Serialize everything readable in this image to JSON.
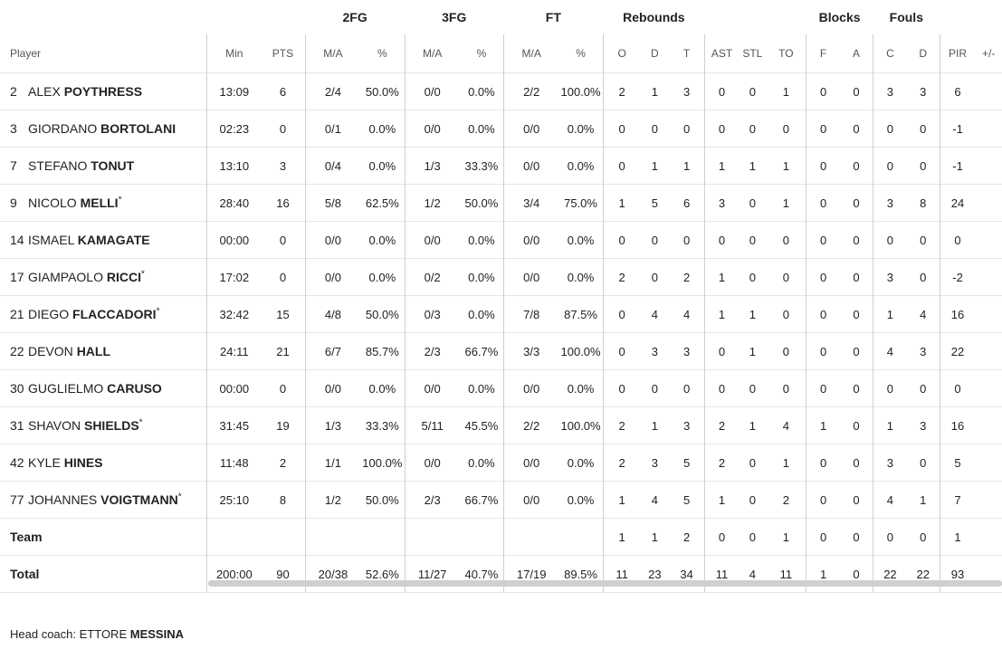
{
  "groups": {
    "fg2": "2FG",
    "fg3": "3FG",
    "ft": "FT",
    "rebounds": "Rebounds",
    "blocks": "Blocks",
    "fouls": "Fouls"
  },
  "columns": {
    "player": "Player",
    "min": "Min",
    "pts": "PTS",
    "fg2_ma": "M/A",
    "fg2_pct": "%",
    "fg3_ma": "M/A",
    "fg3_pct": "%",
    "ft_ma": "M/A",
    "ft_pct": "%",
    "reb_o": "O",
    "reb_d": "D",
    "reb_t": "T",
    "ast": "AST",
    "stl": "STL",
    "to": "TO",
    "blk_f": "F",
    "blk_a": "A",
    "foul_c": "C",
    "foul_d": "D",
    "pir": "PIR",
    "plusminus": "+/-"
  },
  "rows": [
    {
      "num": "2",
      "first": "ALEX",
      "last": "POYTHRESS",
      "star": "",
      "min": "13:09",
      "pts": "6",
      "fg2_ma": "2/4",
      "fg2_pct": "50.0%",
      "fg3_ma": "0/0",
      "fg3_pct": "0.0%",
      "ft_ma": "2/2",
      "ft_pct": "100.0%",
      "reb_o": "2",
      "reb_d": "1",
      "reb_t": "3",
      "ast": "0",
      "stl": "0",
      "to": "1",
      "blk_f": "0",
      "blk_a": "0",
      "foul_c": "3",
      "foul_d": "3",
      "pir": "6",
      "pm": ""
    },
    {
      "num": "3",
      "first": "GIORDANO",
      "last": "BORTOLANI",
      "star": "",
      "min": "02:23",
      "pts": "0",
      "fg2_ma": "0/1",
      "fg2_pct": "0.0%",
      "fg3_ma": "0/0",
      "fg3_pct": "0.0%",
      "ft_ma": "0/0",
      "ft_pct": "0.0%",
      "reb_o": "0",
      "reb_d": "0",
      "reb_t": "0",
      "ast": "0",
      "stl": "0",
      "to": "0",
      "blk_f": "0",
      "blk_a": "0",
      "foul_c": "0",
      "foul_d": "0",
      "pir": "-1",
      "pm": ""
    },
    {
      "num": "7",
      "first": "STEFANO",
      "last": "TONUT",
      "star": "",
      "min": "13:10",
      "pts": "3",
      "fg2_ma": "0/4",
      "fg2_pct": "0.0%",
      "fg3_ma": "1/3",
      "fg3_pct": "33.3%",
      "ft_ma": "0/0",
      "ft_pct": "0.0%",
      "reb_o": "0",
      "reb_d": "1",
      "reb_t": "1",
      "ast": "1",
      "stl": "1",
      "to": "1",
      "blk_f": "0",
      "blk_a": "0",
      "foul_c": "0",
      "foul_d": "0",
      "pir": "-1",
      "pm": ""
    },
    {
      "num": "9",
      "first": "NICOLO",
      "last": "MELLI",
      "star": "*",
      "min": "28:40",
      "pts": "16",
      "fg2_ma": "5/8",
      "fg2_pct": "62.5%",
      "fg3_ma": "1/2",
      "fg3_pct": "50.0%",
      "ft_ma": "3/4",
      "ft_pct": "75.0%",
      "reb_o": "1",
      "reb_d": "5",
      "reb_t": "6",
      "ast": "3",
      "stl": "0",
      "to": "1",
      "blk_f": "0",
      "blk_a": "0",
      "foul_c": "3",
      "foul_d": "8",
      "pir": "24",
      "pm": ""
    },
    {
      "num": "14",
      "first": "ISMAEL",
      "last": "KAMAGATE",
      "star": "",
      "min": "00:00",
      "pts": "0",
      "fg2_ma": "0/0",
      "fg2_pct": "0.0%",
      "fg3_ma": "0/0",
      "fg3_pct": "0.0%",
      "ft_ma": "0/0",
      "ft_pct": "0.0%",
      "reb_o": "0",
      "reb_d": "0",
      "reb_t": "0",
      "ast": "0",
      "stl": "0",
      "to": "0",
      "blk_f": "0",
      "blk_a": "0",
      "foul_c": "0",
      "foul_d": "0",
      "pir": "0",
      "pm": ""
    },
    {
      "num": "17",
      "first": "GIAMPAOLO",
      "last": "RICCI",
      "star": "*",
      "min": "17:02",
      "pts": "0",
      "fg2_ma": "0/0",
      "fg2_pct": "0.0%",
      "fg3_ma": "0/2",
      "fg3_pct": "0.0%",
      "ft_ma": "0/0",
      "ft_pct": "0.0%",
      "reb_o": "2",
      "reb_d": "0",
      "reb_t": "2",
      "ast": "1",
      "stl": "0",
      "to": "0",
      "blk_f": "0",
      "blk_a": "0",
      "foul_c": "3",
      "foul_d": "0",
      "pir": "-2",
      "pm": ""
    },
    {
      "num": "21",
      "first": "DIEGO",
      "last": "FLACCADORI",
      "star": "*",
      "min": "32:42",
      "pts": "15",
      "fg2_ma": "4/8",
      "fg2_pct": "50.0%",
      "fg3_ma": "0/3",
      "fg3_pct": "0.0%",
      "ft_ma": "7/8",
      "ft_pct": "87.5%",
      "reb_o": "0",
      "reb_d": "4",
      "reb_t": "4",
      "ast": "1",
      "stl": "1",
      "to": "0",
      "blk_f": "0",
      "blk_a": "0",
      "foul_c": "1",
      "foul_d": "4",
      "pir": "16",
      "pm": ""
    },
    {
      "num": "22",
      "first": "DEVON",
      "last": "HALL",
      "star": "",
      "min": "24:11",
      "pts": "21",
      "fg2_ma": "6/7",
      "fg2_pct": "85.7%",
      "fg3_ma": "2/3",
      "fg3_pct": "66.7%",
      "ft_ma": "3/3",
      "ft_pct": "100.0%",
      "reb_o": "0",
      "reb_d": "3",
      "reb_t": "3",
      "ast": "0",
      "stl": "1",
      "to": "0",
      "blk_f": "0",
      "blk_a": "0",
      "foul_c": "4",
      "foul_d": "3",
      "pir": "22",
      "pm": ""
    },
    {
      "num": "30",
      "first": "GUGLIELMO",
      "last": "CARUSO",
      "star": "",
      "min": "00:00",
      "pts": "0",
      "fg2_ma": "0/0",
      "fg2_pct": "0.0%",
      "fg3_ma": "0/0",
      "fg3_pct": "0.0%",
      "ft_ma": "0/0",
      "ft_pct": "0.0%",
      "reb_o": "0",
      "reb_d": "0",
      "reb_t": "0",
      "ast": "0",
      "stl": "0",
      "to": "0",
      "blk_f": "0",
      "blk_a": "0",
      "foul_c": "0",
      "foul_d": "0",
      "pir": "0",
      "pm": ""
    },
    {
      "num": "31",
      "first": "SHAVON",
      "last": "SHIELDS",
      "star": "*",
      "min": "31:45",
      "pts": "19",
      "fg2_ma": "1/3",
      "fg2_pct": "33.3%",
      "fg3_ma": "5/11",
      "fg3_pct": "45.5%",
      "ft_ma": "2/2",
      "ft_pct": "100.0%",
      "reb_o": "2",
      "reb_d": "1",
      "reb_t": "3",
      "ast": "2",
      "stl": "1",
      "to": "4",
      "blk_f": "1",
      "blk_a": "0",
      "foul_c": "1",
      "foul_d": "3",
      "pir": "16",
      "pm": ""
    },
    {
      "num": "42",
      "first": "KYLE",
      "last": "HINES",
      "star": "",
      "min": "11:48",
      "pts": "2",
      "fg2_ma": "1/1",
      "fg2_pct": "100.0%",
      "fg3_ma": "0/0",
      "fg3_pct": "0.0%",
      "ft_ma": "0/0",
      "ft_pct": "0.0%",
      "reb_o": "2",
      "reb_d": "3",
      "reb_t": "5",
      "ast": "2",
      "stl": "0",
      "to": "1",
      "blk_f": "0",
      "blk_a": "0",
      "foul_c": "3",
      "foul_d": "0",
      "pir": "5",
      "pm": ""
    },
    {
      "num": "77",
      "first": "JOHANNES",
      "last": "VOIGTMANN",
      "star": "*",
      "min": "25:10",
      "pts": "8",
      "fg2_ma": "1/2",
      "fg2_pct": "50.0%",
      "fg3_ma": "2/3",
      "fg3_pct": "66.7%",
      "ft_ma": "0/0",
      "ft_pct": "0.0%",
      "reb_o": "1",
      "reb_d": "4",
      "reb_t": "5",
      "ast": "1",
      "stl": "0",
      "to": "2",
      "blk_f": "0",
      "blk_a": "0",
      "foul_c": "4",
      "foul_d": "1",
      "pir": "7",
      "pm": ""
    }
  ],
  "team": {
    "label": "Team",
    "min": "",
    "pts": "",
    "fg2_ma": "",
    "fg2_pct": "",
    "fg3_ma": "",
    "fg3_pct": "",
    "ft_ma": "",
    "ft_pct": "",
    "reb_o": "1",
    "reb_d": "1",
    "reb_t": "2",
    "ast": "0",
    "stl": "0",
    "to": "1",
    "blk_f": "0",
    "blk_a": "0",
    "foul_c": "0",
    "foul_d": "0",
    "pir": "1",
    "pm": ""
  },
  "total": {
    "label": "Total",
    "min": "200:00",
    "pts": "90",
    "fg2_ma": "20/38",
    "fg2_pct": "52.6%",
    "fg3_ma": "11/27",
    "fg3_pct": "40.7%",
    "ft_ma": "17/19",
    "ft_pct": "89.5%",
    "reb_o": "11",
    "reb_d": "23",
    "reb_t": "34",
    "ast": "11",
    "stl": "4",
    "to": "11",
    "blk_f": "1",
    "blk_a": "0",
    "foul_c": "22",
    "foul_d": "22",
    "pir": "93",
    "pm": ""
  },
  "coach": {
    "label": "Head coach:",
    "first": "ETTORE",
    "last": "MESSINA"
  }
}
